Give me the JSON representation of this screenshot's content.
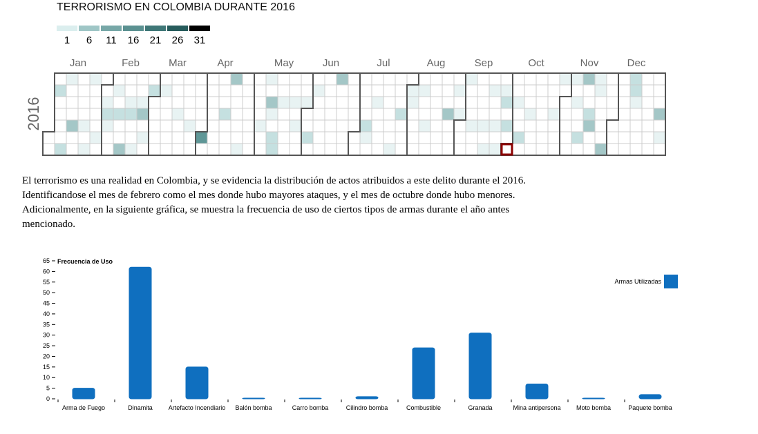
{
  "calendar": {
    "title": "TERRORISMO EN COLOMBIA DURANTE 2016",
    "year": "2016",
    "legend": {
      "labels": [
        "1",
        "6",
        "11",
        "16",
        "21",
        "26",
        "31"
      ],
      "colors": [
        "#dbeeee",
        "#9fc6c6",
        "#77a7a7",
        "#5b9191",
        "#3f7777",
        "#275c5c",
        "#000000"
      ]
    },
    "months": [
      "Jan",
      "Feb",
      "Mar",
      "Apr",
      "May",
      "Jun",
      "Jul",
      "Aug",
      "Sep",
      "Oct",
      "Nov",
      "Dec"
    ],
    "highlighted_date": "2016-10-01"
  },
  "text": [
    "El terrorismo es una realidad en Colombia, y se evidencia la distribución de actos atribuidos a este delito durante el 2016.",
    "Identificandose el mes de febrero como el mes donde hubo mayores ataques, y el mes de octubre donde hubo menores.",
    "Adicionalmente, en la siguiente gráfica, se muestra la frecuencia de uso de ciertos tipos de armas durante el año antes",
    "mencionado."
  ],
  "chart_data": {
    "type": "bar",
    "ylabel": "Frecuencia de Uso",
    "ylim": [
      0,
      65
    ],
    "yticks": [
      0,
      5,
      10,
      15,
      20,
      25,
      30,
      35,
      40,
      45,
      50,
      55,
      60,
      65
    ],
    "categories": [
      "Arma de Fuego",
      "Dinamita",
      "Artefacto Incendiario",
      "Balón bomba",
      "Carro bomba",
      "Cilindro bomba",
      "Combustible",
      "Granada",
      "Mina antipersona",
      "Moto bomba",
      "Paquete bomba"
    ],
    "series": [
      {
        "name": "Armas Utilizadas",
        "values": [
          5,
          62,
          15,
          0,
          0,
          1,
          24,
          31,
          7,
          0,
          2
        ],
        "color": "#0f6fbf"
      }
    ],
    "legend_position": "top-right",
    "grid": false
  }
}
